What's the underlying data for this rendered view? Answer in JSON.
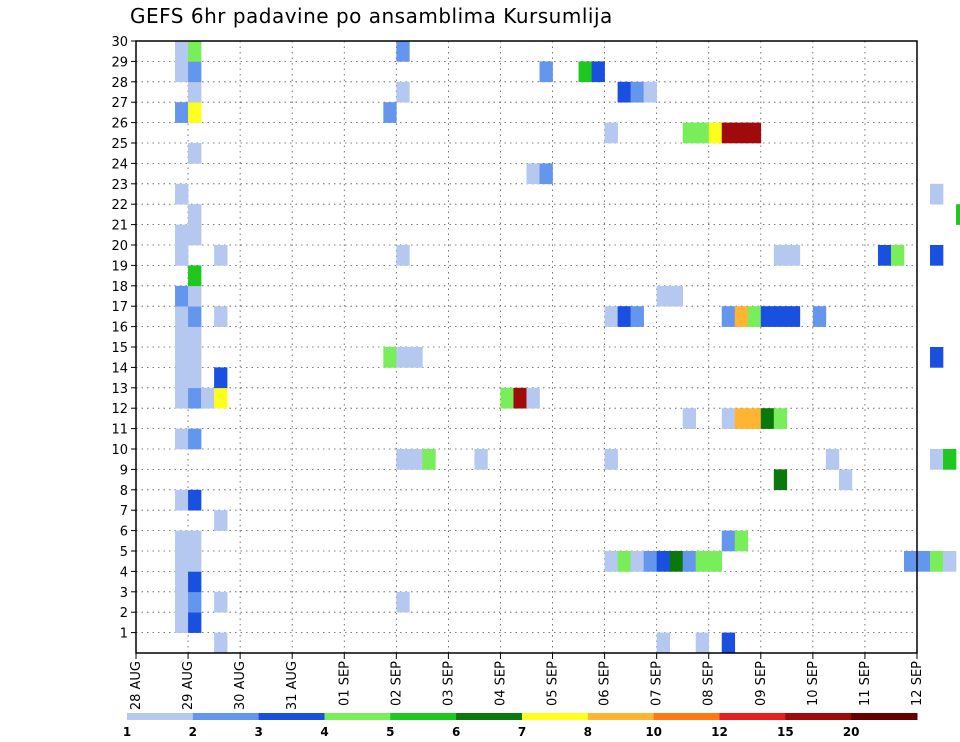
{
  "chart_data": {
    "type": "heatmap",
    "title": "GEFS 6hr padavine po ansamblima Kursumlija",
    "xlabel": "",
    "ylabel": "",
    "x_tick_labels": [
      "28 AUG",
      "29 AUG",
      "30 AUG",
      "31 AUG",
      "01 SEP",
      "02 SEP",
      "03 SEP",
      "04 SEP",
      "05 SEP",
      "06 SEP",
      "07 SEP",
      "08 SEP",
      "09 SEP",
      "10 SEP",
      "11 SEP",
      "12 SEP"
    ],
    "y_tick_labels": [
      "1",
      "2",
      "3",
      "4",
      "5",
      "6",
      "7",
      "8",
      "9",
      "10",
      "11",
      "12",
      "13",
      "14",
      "15",
      "16",
      "17",
      "18",
      "19",
      "20",
      "21",
      "22",
      "23",
      "24",
      "25",
      "26",
      "27",
      "28",
      "29",
      "30"
    ],
    "x_unit": "6-hour step (0 = 28 AUG 00Z)",
    "xlim": [
      0,
      60
    ],
    "ylim": [
      0,
      30
    ],
    "grid": true,
    "colorbar": {
      "boundary_labels": [
        "1",
        "2",
        "3",
        "4",
        "5",
        "6",
        "7",
        "8",
        "10",
        "12",
        "15",
        "20"
      ],
      "colors": [
        "#b4c8f0",
        "#6496ee",
        "#1a50e0",
        "#78ee5a",
        "#1ec81e",
        "#0a780a",
        "#ffff1e",
        "#ffb432",
        "#ff7814",
        "#e61e1e",
        "#a00a0a",
        "#640000"
      ]
    },
    "cells": [
      [
        3,
        1,
        0
      ],
      [
        3,
        2,
        0
      ],
      [
        3,
        3,
        0
      ],
      [
        3,
        4,
        0
      ],
      [
        3,
        5,
        0
      ],
      [
        3,
        7,
        0
      ],
      [
        3,
        10,
        0
      ],
      [
        3,
        12,
        0
      ],
      [
        3,
        13,
        0
      ],
      [
        3,
        14,
        0
      ],
      [
        3,
        15,
        0
      ],
      [
        3,
        16,
        0
      ],
      [
        3,
        17,
        1
      ],
      [
        3,
        19,
        0
      ],
      [
        3,
        20,
        0
      ],
      [
        3,
        22,
        0
      ],
      [
        3,
        26,
        1
      ],
      [
        3,
        28,
        0
      ],
      [
        3,
        29,
        0
      ],
      [
        4,
        1,
        2
      ],
      [
        4,
        2,
        1
      ],
      [
        4,
        3,
        2
      ],
      [
        4,
        4,
        0
      ],
      [
        4,
        5,
        0
      ],
      [
        4,
        7,
        2
      ],
      [
        4,
        10,
        1
      ],
      [
        4,
        12,
        1
      ],
      [
        4,
        13,
        0
      ],
      [
        4,
        14,
        0
      ],
      [
        4,
        15,
        0
      ],
      [
        4,
        16,
        1
      ],
      [
        4,
        17,
        0
      ],
      [
        4,
        18,
        4
      ],
      [
        4,
        20,
        0
      ],
      [
        4,
        21,
        0
      ],
      [
        4,
        24,
        0
      ],
      [
        4,
        26,
        6
      ],
      [
        4,
        27,
        0
      ],
      [
        4,
        28,
        1
      ],
      [
        4,
        29,
        3
      ],
      [
        5,
        12,
        0
      ],
      [
        6,
        0,
        0
      ],
      [
        6,
        2,
        0
      ],
      [
        6,
        6,
        0
      ],
      [
        6,
        12,
        6
      ],
      [
        6,
        13,
        2
      ],
      [
        6,
        16,
        0
      ],
      [
        6,
        19,
        0
      ],
      [
        19,
        14,
        3
      ],
      [
        19,
        26,
        1
      ],
      [
        20,
        2,
        0
      ],
      [
        20,
        9,
        0
      ],
      [
        20,
        14,
        0
      ],
      [
        20,
        19,
        0
      ],
      [
        20,
        27,
        0
      ],
      [
        20,
        29,
        1
      ],
      [
        21,
        9,
        0
      ],
      [
        21,
        14,
        0
      ],
      [
        22,
        9,
        3
      ],
      [
        26,
        9,
        0
      ],
      [
        28,
        12,
        3
      ],
      [
        29,
        12,
        10
      ],
      [
        30,
        12,
        0
      ],
      [
        30,
        23,
        0
      ],
      [
        31,
        23,
        1
      ],
      [
        31,
        28,
        1
      ],
      [
        34,
        28,
        4
      ],
      [
        35,
        28,
        2
      ],
      [
        36,
        4,
        0
      ],
      [
        36,
        9,
        0
      ],
      [
        36,
        16,
        0
      ],
      [
        36,
        25,
        0
      ],
      [
        37,
        4,
        3
      ],
      [
        37,
        16,
        2
      ],
      [
        37,
        27,
        2
      ],
      [
        38,
        4,
        0
      ],
      [
        38,
        16,
        1
      ],
      [
        38,
        27,
        1
      ],
      [
        39,
        4,
        1
      ],
      [
        39,
        27,
        0
      ],
      [
        40,
        0,
        0
      ],
      [
        40,
        4,
        2
      ],
      [
        40,
        17,
        0
      ],
      [
        41,
        4,
        5
      ],
      [
        41,
        17,
        0
      ],
      [
        42,
        4,
        1
      ],
      [
        42,
        11,
        0
      ],
      [
        42,
        25,
        3
      ],
      [
        43,
        4,
        3
      ],
      [
        43,
        0,
        0
      ],
      [
        43,
        25,
        3
      ],
      [
        44,
        4,
        3
      ],
      [
        44,
        25,
        6
      ],
      [
        45,
        0,
        2
      ],
      [
        45,
        5,
        1
      ],
      [
        45,
        11,
        0
      ],
      [
        45,
        16,
        1
      ],
      [
        45,
        25,
        10
      ],
      [
        46,
        5,
        3
      ],
      [
        46,
        11,
        7
      ],
      [
        46,
        16,
        7
      ],
      [
        46,
        25,
        10
      ],
      [
        47,
        11,
        7
      ],
      [
        47,
        16,
        3
      ],
      [
        47,
        25,
        10
      ],
      [
        48,
        11,
        5
      ],
      [
        48,
        16,
        2
      ],
      [
        49,
        8,
        5
      ],
      [
        49,
        11,
        3
      ],
      [
        49,
        16,
        2
      ],
      [
        49,
        19,
        0
      ],
      [
        50,
        16,
        2
      ],
      [
        50,
        19,
        0
      ],
      [
        52,
        16,
        1
      ],
      [
        53,
        9,
        0
      ],
      [
        54,
        8,
        0
      ],
      [
        57,
        19,
        2
      ],
      [
        58,
        19,
        3
      ],
      [
        59,
        4,
        1
      ],
      [
        60,
        4,
        1
      ],
      [
        61,
        4,
        3
      ],
      [
        61,
        9,
        0
      ],
      [
        61,
        14,
        2
      ],
      [
        61,
        19,
        2
      ],
      [
        61,
        22,
        0
      ],
      [
        62,
        4,
        0
      ],
      [
        62,
        9,
        4
      ],
      [
        63,
        21,
        4
      ]
    ]
  }
}
